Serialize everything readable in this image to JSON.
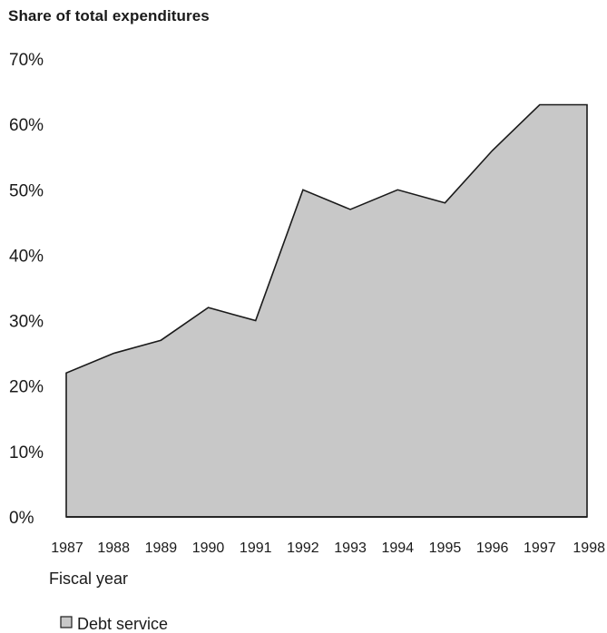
{
  "chart_data": {
    "type": "area",
    "title": "Share of total expenditures",
    "xlabel": "Fiscal year",
    "ylabel": "",
    "x": [
      1987,
      1988,
      1989,
      1990,
      1991,
      1992,
      1993,
      1994,
      1995,
      1996,
      1997,
      1998
    ],
    "x_tick_labels": [
      "1987",
      "1988",
      "1989",
      "1990",
      "1991",
      "1992",
      "1993",
      "1994",
      "1995",
      "1996",
      "1997",
      "1998"
    ],
    "ylim": [
      0,
      70
    ],
    "y_ticks": [
      0,
      10,
      20,
      30,
      40,
      50,
      60,
      70
    ],
    "y_tick_labels": [
      "0%",
      "10%",
      "20%",
      "30%",
      "40%",
      "50%",
      "60%",
      "70%"
    ],
    "series": [
      {
        "name": "Debt service",
        "values": [
          22,
          25,
          27,
          32,
          30,
          50,
          47,
          50,
          48,
          56,
          63,
          63
        ]
      }
    ],
    "grid": false,
    "legend": "bottom-left",
    "colors": {
      "fill": "#c8c8c8",
      "stroke": "#1a1a1a"
    }
  }
}
